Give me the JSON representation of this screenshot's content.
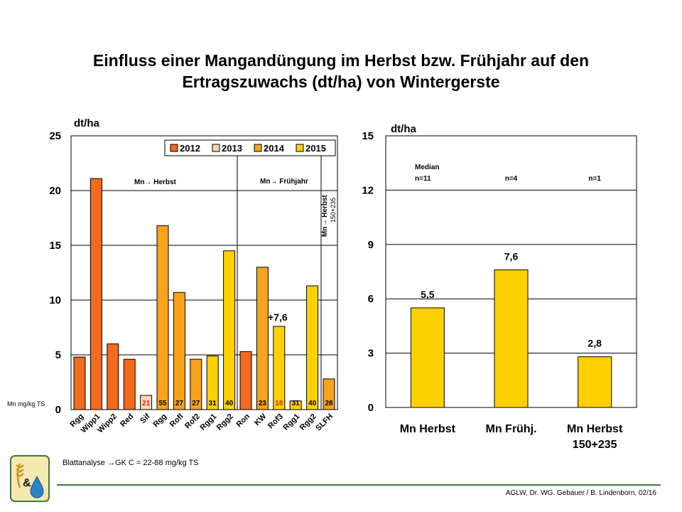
{
  "title": {
    "line1": "Einfluss einer Mangandüngung im Herbst  bzw. Frühjahr auf den",
    "line2": "Ertragszuwachs (dt/ha) von Wintergerste"
  },
  "footer": {
    "note": "Blattanalyse →GK C = 22-88 mg/kg TS",
    "credit": "AGLW, Dr. WG. Gebauer / B. Lindenborn, 02/16"
  },
  "colors": {
    "2012": "#f26a1b",
    "2013": "#fbd5b5",
    "2014": "#f9a21b",
    "2015": "#ffd000",
    "footer_line": "#3e7a3a"
  },
  "chart_data": [
    {
      "type": "bar",
      "ylabel": "dt/ha",
      "ylim": [
        0,
        25
      ],
      "yticks": [
        0,
        5,
        10,
        15,
        20,
        25
      ],
      "grid": true,
      "legend_position": "top-right",
      "legend": [
        "2012",
        "2013",
        "2014",
        "2015"
      ],
      "categories": [
        "Rgg",
        "Wipp1",
        "Wipp2",
        "Red",
        "Sif",
        "Rgg",
        "Rofl",
        "Rof2",
        "Rgg1",
        "Rgg2",
        "Ron",
        "KW",
        "Rof3",
        "Rgg1",
        "Rgg2",
        "SLFH"
      ],
      "values": [
        4.8,
        21.1,
        6.0,
        4.6,
        1.3,
        16.8,
        10.7,
        4.6,
        4.9,
        14.5,
        5.3,
        13.0,
        7.6,
        0.8,
        11.3,
        2.8
      ],
      "years": [
        "2012",
        "2012",
        "2012",
        "2012",
        "2013",
        "2014",
        "2014",
        "2014",
        "2015",
        "2015",
        "2012",
        "2014",
        "2015",
        "2015",
        "2015",
        "2014"
      ],
      "mn_label_title": "Mn mg/kg TS",
      "mn_values": [
        "",
        "",
        "",
        "",
        "21",
        "55",
        "27",
        "27",
        "31",
        "40",
        "",
        "23",
        "18",
        "31",
        "40",
        "28"
      ],
      "mn_red": [
        false,
        false,
        false,
        false,
        true,
        false,
        false,
        false,
        false,
        false,
        false,
        false,
        true,
        false,
        false,
        false
      ],
      "annotations": {
        "herbst": "Mn→ Herbst",
        "fruehjahr": "Mn→ Frühjahr",
        "herbst_vertical": "Mn→ Herbst",
        "herbst_vertical_sub": "150+235",
        "bar_label": "+7,6"
      }
    },
    {
      "type": "bar",
      "ylabel": "dt/ha",
      "ylim": [
        0,
        15
      ],
      "yticks": [
        0,
        3,
        6,
        9,
        12,
        15
      ],
      "grid": true,
      "categories": [
        "Mn Herbst",
        "Mn Frühj.",
        "Mn Herbst"
      ],
      "categories_line2": [
        "",
        "",
        "150+235"
      ],
      "values": [
        5.5,
        7.6,
        2.8
      ],
      "value_labels": [
        "5,5",
        "7,6",
        "2,8"
      ],
      "n_labels": [
        "n=11",
        "n=4",
        "n=1"
      ],
      "median_label": "Median"
    }
  ]
}
